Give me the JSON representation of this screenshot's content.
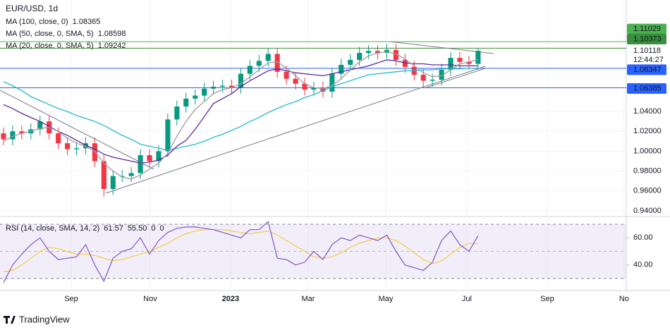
{
  "chart_data": [
    {
      "type": "candlestick",
      "title": "EUR/USD, 1d",
      "open": [
        1.018,
        1.012,
        1.02,
        1.018,
        1.022,
        1.03,
        1.018,
        1.008,
        1.002,
        1.003,
        1.008,
        0.99,
        0.962,
        0.975,
        0.975,
        0.978,
        0.996,
        0.99,
        1.0,
        1.032,
        1.045,
        1.053,
        1.056,
        1.063,
        1.065,
        1.066,
        1.064,
        1.078,
        1.086,
        1.091,
        1.098,
        1.08,
        1.073,
        1.068,
        1.062,
        1.064,
        1.06,
        1.078,
        1.087,
        1.092,
        1.099,
        1.101,
        1.099,
        1.102,
        1.092,
        1.085,
        1.077,
        1.071,
        1.072,
        1.082,
        1.094,
        1.09,
        1.088
      ],
      "high": [
        1.024,
        1.026,
        1.026,
        1.028,
        1.036,
        1.036,
        1.024,
        1.014,
        1.009,
        1.014,
        1.014,
        0.996,
        0.981,
        0.981,
        0.984,
        1.002,
        1.002,
        1.006,
        1.038,
        1.051,
        1.059,
        1.062,
        1.069,
        1.071,
        1.072,
        1.072,
        1.084,
        1.092,
        1.097,
        1.104,
        1.104,
        1.086,
        1.079,
        1.074,
        1.07,
        1.07,
        1.084,
        1.093,
        1.098,
        1.105,
        1.107,
        1.107,
        1.108,
        1.108,
        1.098,
        1.091,
        1.083,
        1.078,
        1.088,
        1.1,
        1.1,
        1.096,
        1.104
      ],
      "low": [
        1.006,
        1.006,
        1.012,
        1.012,
        1.016,
        1.012,
        1.002,
        0.996,
        0.996,
        0.997,
        0.984,
        0.954,
        0.956,
        0.969,
        0.969,
        0.972,
        0.984,
        0.984,
        0.994,
        1.026,
        1.039,
        1.047,
        1.05,
        1.057,
        1.059,
        1.058,
        1.058,
        1.072,
        1.08,
        1.085,
        1.074,
        1.067,
        1.062,
        1.056,
        1.056,
        1.054,
        1.054,
        1.072,
        1.081,
        1.086,
        1.093,
        1.093,
        1.093,
        1.086,
        1.079,
        1.071,
        1.065,
        1.065,
        1.066,
        1.076,
        1.084,
        1.082,
        1.082
      ],
      "close": [
        1.012,
        1.02,
        1.018,
        1.022,
        1.03,
        1.018,
        1.008,
        1.002,
        1.003,
        1.008,
        0.99,
        0.962,
        0.975,
        0.975,
        0.978,
        0.996,
        0.99,
        1.0,
        1.032,
        1.045,
        1.053,
        1.056,
        1.063,
        1.065,
        1.066,
        1.064,
        1.078,
        1.086,
        1.091,
        1.098,
        1.08,
        1.073,
        1.068,
        1.062,
        1.064,
        1.06,
        1.078,
        1.087,
        1.092,
        1.099,
        1.101,
        1.099,
        1.102,
        1.092,
        1.085,
        1.077,
        1.071,
        1.072,
        1.082,
        1.094,
        1.09,
        1.088,
        1.10118
      ],
      "up_color": "#089981",
      "down_color": "#f23645",
      "series": [
        {
          "name": "MA (100, close, 0)",
          "color": "#22b8cf",
          "values": [
            1.07,
            1.066,
            1.061,
            1.055,
            1.051,
            1.047,
            1.043,
            1.04,
            1.036,
            1.033,
            1.03,
            1.026,
            1.021,
            1.016,
            1.012,
            1.007,
            1.005,
            1.003,
            1.001,
            1.003,
            1.005,
            1.007,
            1.01,
            1.014,
            1.017,
            1.021,
            1.025,
            1.03,
            1.034,
            1.039,
            1.043,
            1.047,
            1.05,
            1.054,
            1.057,
            1.061,
            1.065,
            1.068,
            1.071,
            1.074,
            1.077,
            1.078,
            1.079,
            1.08,
            1.081,
            1.081,
            1.082,
            1.082,
            1.083,
            1.083,
            1.083,
            1.0835,
            1.08365
          ]
        },
        {
          "name": "MA (50, close, 0, SMA, 5)",
          "color": "#5b2a9e",
          "values": [
            1.047,
            1.043,
            1.038,
            1.034,
            1.03,
            1.025,
            1.02,
            1.016,
            1.011,
            1.006,
            1.002,
            0.997,
            0.994,
            0.992,
            0.99,
            0.988,
            0.989,
            0.991,
            0.996,
            1.005,
            1.011,
            1.022,
            1.035,
            1.048,
            1.053,
            1.058,
            1.065,
            1.071,
            1.076,
            1.081,
            1.083,
            1.081,
            1.079,
            1.078,
            1.077,
            1.076,
            1.078,
            1.08,
            1.082,
            1.084,
            1.086,
            1.089,
            1.092,
            1.091,
            1.089,
            1.088,
            1.088,
            1.087,
            1.087,
            1.087,
            1.086,
            1.086,
            1.08598
          ]
        },
        {
          "name": "MA (20, close, 0, SMA, 5)",
          "color": "#9e9e9e",
          "values": [
            1.01,
            1.015,
            1.018,
            1.02,
            1.023,
            1.024,
            1.02,
            1.013,
            1.008,
            1.005,
            1.0,
            0.988,
            0.98,
            0.974,
            0.972,
            0.976,
            0.982,
            0.988,
            0.998,
            1.015,
            1.03,
            1.042,
            1.05,
            1.058,
            1.062,
            1.064,
            1.068,
            1.075,
            1.082,
            1.089,
            1.09,
            1.084,
            1.076,
            1.068,
            1.064,
            1.063,
            1.066,
            1.073,
            1.082,
            1.09,
            1.096,
            1.099,
            1.1,
            1.098,
            1.093,
            1.086,
            1.079,
            1.075,
            1.076,
            1.082,
            1.088,
            1.09,
            1.09242
          ]
        }
      ],
      "levels": [
        {
          "value": 1.11029,
          "color": "#4caf50"
        },
        {
          "value": 1.10373,
          "color": "#388e3c"
        },
        {
          "value": 1.08347,
          "color": "#2962ff"
        },
        {
          "value": 1.06385,
          "color": "#2962ff"
        }
      ],
      "countdown": "12:44:27",
      "ylim": [
        0.9357,
        1.1523
      ],
      "yticks": [
        {
          "value": 0.94,
          "label": "0.94000"
        },
        {
          "value": 0.96,
          "label": "0.96000"
        },
        {
          "value": 0.98,
          "label": "0.98000"
        },
        {
          "value": 1.0,
          "label": "1.00000"
        },
        {
          "value": 1.02,
          "label": "1.02000"
        },
        {
          "value": 1.04,
          "label": "1.04000"
        }
      ],
      "xlim": [
        -0.386,
        68.24
      ],
      "xticks": [
        {
          "value": 7.42,
          "label": "Sep"
        },
        {
          "value": 16.07,
          "label": "Nov"
        },
        {
          "value": 24.88,
          "label": "2023",
          "bold": true
        },
        {
          "value": 33.38,
          "label": "Mar"
        },
        {
          "value": 41.89,
          "label": "May"
        },
        {
          "value": 50.77,
          "label": "Jul"
        },
        {
          "value": 59.58,
          "label": "Sep"
        },
        {
          "value": 68.0,
          "label": "No"
        }
      ]
    },
    {
      "type": "line",
      "title": "RSI (14, close, SMA, 14, 2)",
      "series": [
        {
          "color": "#7e57c2",
          "values": [
            27,
            40,
            48,
            55,
            60,
            50,
            44,
            45,
            46,
            55,
            40,
            28,
            45,
            50,
            52,
            60,
            48,
            58,
            64,
            67,
            68,
            68,
            67,
            66,
            64,
            62,
            60,
            66,
            66,
            72,
            45,
            44,
            40,
            42,
            50,
            44,
            55,
            60,
            58,
            62,
            60,
            58,
            62,
            50,
            40,
            38,
            36,
            42,
            58,
            65,
            55,
            50,
            61.57
          ]
        },
        {
          "color": "#f7c948",
          "last_label": "55.50",
          "values": [
            35,
            36,
            40,
            45,
            50,
            53,
            52,
            50,
            48,
            48,
            47,
            45,
            43,
            44,
            46,
            48,
            50,
            53,
            56,
            60,
            63,
            65,
            66,
            66,
            66,
            65,
            64,
            63,
            64,
            65,
            62,
            58,
            54,
            50,
            46,
            45,
            46,
            49,
            53,
            56,
            58,
            60,
            60,
            58,
            54,
            49,
            44,
            41,
            43,
            48,
            53,
            56,
            55.5
          ]
        }
      ],
      "legend_extra": [
        0,
        0
      ],
      "levels": [
        70,
        50,
        30
      ],
      "band_color": "#7e57c2",
      "ylim": [
        21.2,
        75.2
      ],
      "yticks": [
        {
          "value": 60,
          "label": "60.00"
        },
        {
          "value": 40,
          "label": "40.00"
        }
      ]
    }
  ],
  "footer": "TradingView"
}
